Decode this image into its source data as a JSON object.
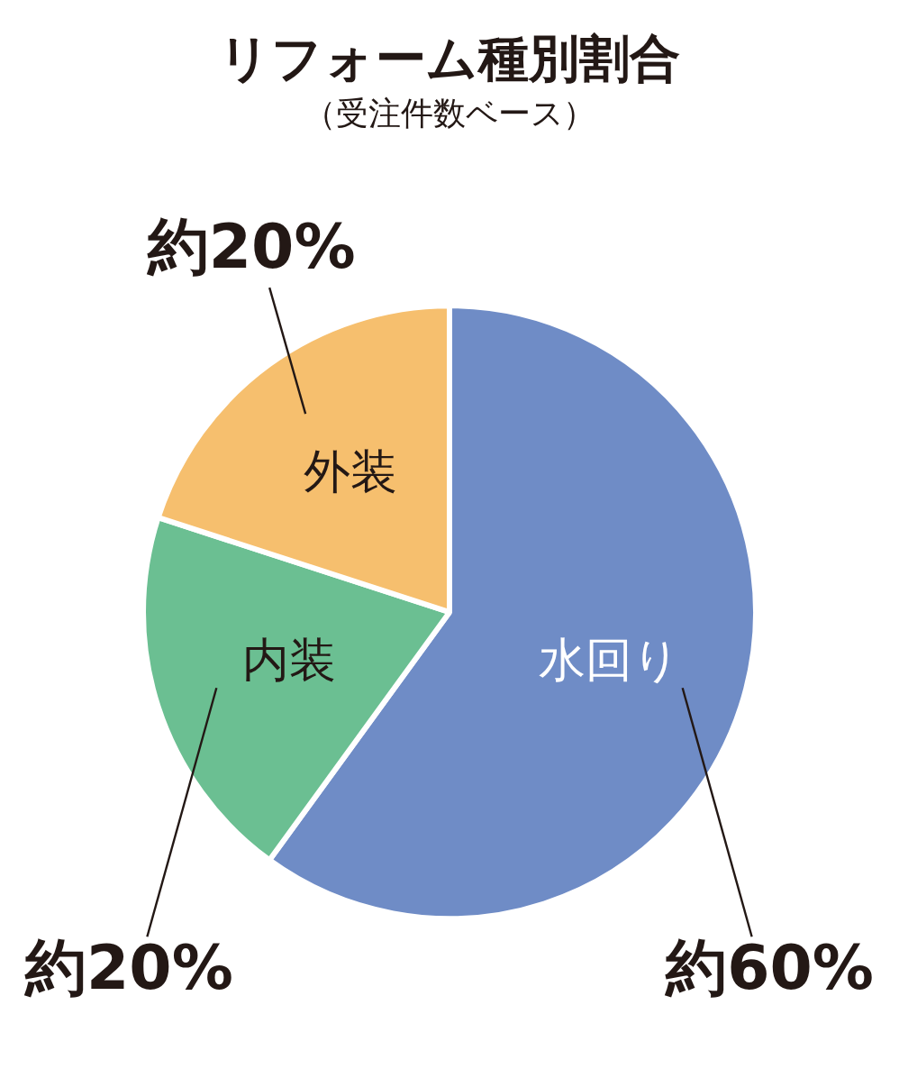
{
  "chart_data": {
    "type": "pie",
    "title": "リフォーム種別割合",
    "subtitle": "（受注件数ベース）",
    "categories": [
      "水回り",
      "内装",
      "外装"
    ],
    "values": [
      60,
      20,
      20
    ],
    "colors": [
      "#6f8cc6",
      "#6bbf92",
      "#f6bf6e"
    ],
    "value_labels": [
      "約60%",
      "約20%",
      "約20%"
    ]
  }
}
